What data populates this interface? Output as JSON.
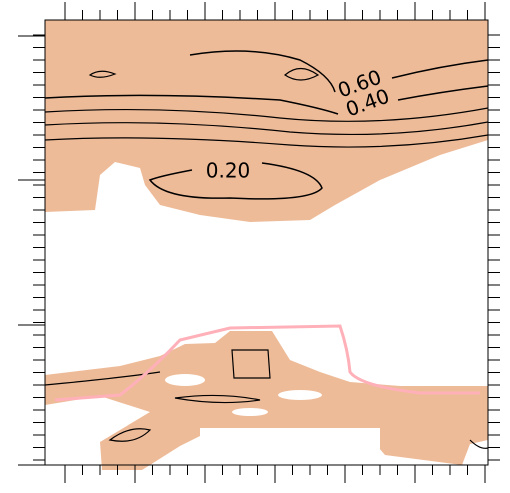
{
  "chart_data": {
    "type": "contour",
    "fill_color": "#eebb99",
    "line_color": "#000000",
    "highlight_color": "#ffb0b8",
    "contours": [
      {
        "value": 0.6,
        "label": "0.60"
      },
      {
        "value": 0.4,
        "label": "0.40"
      },
      {
        "value": 0.2,
        "label": "0.20"
      }
    ]
  }
}
